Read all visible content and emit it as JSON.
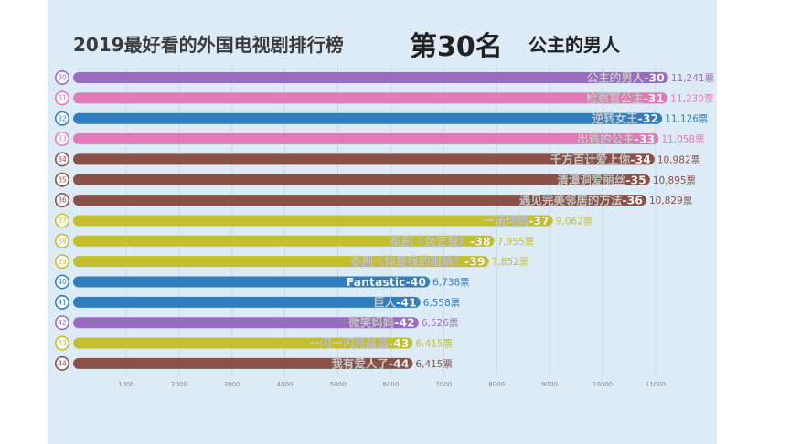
{
  "header": {
    "title": "2019最好看的外国电视剧排行榜",
    "rank_label": "第30名",
    "current_name": "公主的男人"
  },
  "chart_data": {
    "type": "bar",
    "orientation": "horizontal",
    "xlim": [
      0,
      11000
    ],
    "xticks": [
      1000,
      2000,
      3000,
      4000,
      5000,
      6000,
      7000,
      8000,
      9000,
      10000,
      11000
    ],
    "grid": true,
    "unit": "票",
    "bars": [
      {
        "rank": "30",
        "label": "公主的男人-30",
        "value": 11241,
        "value_label": "11,241票",
        "color": "#9b6bc1"
      },
      {
        "rank": "31",
        "label": "检察官公主-31",
        "value": 11230,
        "value_label": "11,230票",
        "color": "#e07ab8"
      },
      {
        "rank": "32",
        "label": "逆转女王-32",
        "value": 11126,
        "value_label": "11,126票",
        "color": "#2f7fbf"
      },
      {
        "rank": "33",
        "label": "出逃的公主-33",
        "value": 11058,
        "value_label": "11,058票",
        "color": "#e07ab8"
      },
      {
        "rank": "34",
        "label": "千方百计爱上你-34",
        "value": 10982,
        "value_label": "10,982票",
        "color": "#8a5148"
      },
      {
        "rank": "35",
        "label": "清潭洞爱丽丝-35",
        "value": 10895,
        "value_label": "10,895票",
        "color": "#8a5148"
      },
      {
        "rank": "36",
        "label": "遇见完美邻居的方法-36",
        "value": 10829,
        "value_label": "10,829票",
        "color": "#8a5148"
      },
      {
        "rank": "37",
        "label": "一诺倾情-37",
        "value": 9062,
        "value_label": "9,062票",
        "color": "#c3bf2f"
      },
      {
        "rank": "38",
        "label": "泰剧《勿忘我》-38",
        "value": 7955,
        "value_label": "7,955票",
        "color": "#c3bf2f"
      },
      {
        "rank": "39",
        "label": "泰剧《你是我的眼睛》-39",
        "value": 7852,
        "value_label": "7,852票",
        "color": "#c3bf2f"
      },
      {
        "rank": "40",
        "label": "Fantastic-40",
        "value": 6738,
        "value_label": "6,738票",
        "color": "#2f7fbf"
      },
      {
        "rank": "41",
        "label": "巨人-41",
        "value": 6558,
        "value_label": "6,558票",
        "color": "#2f7fbf"
      },
      {
        "rank": "42",
        "label": "微笑妈妈-42",
        "value": 6526,
        "value_label": "6,526票",
        "color": "#9b6bc1"
      },
      {
        "rank": "43",
        "label": "一闪一闪亮晶晶-43",
        "value": 6415,
        "value_label": "6,415票",
        "color": "#c3bf2f"
      },
      {
        "rank": "44",
        "label": "我有爱人了-44",
        "value": 6415,
        "value_label": "6,415票",
        "color": "#8a5148"
      }
    ]
  }
}
